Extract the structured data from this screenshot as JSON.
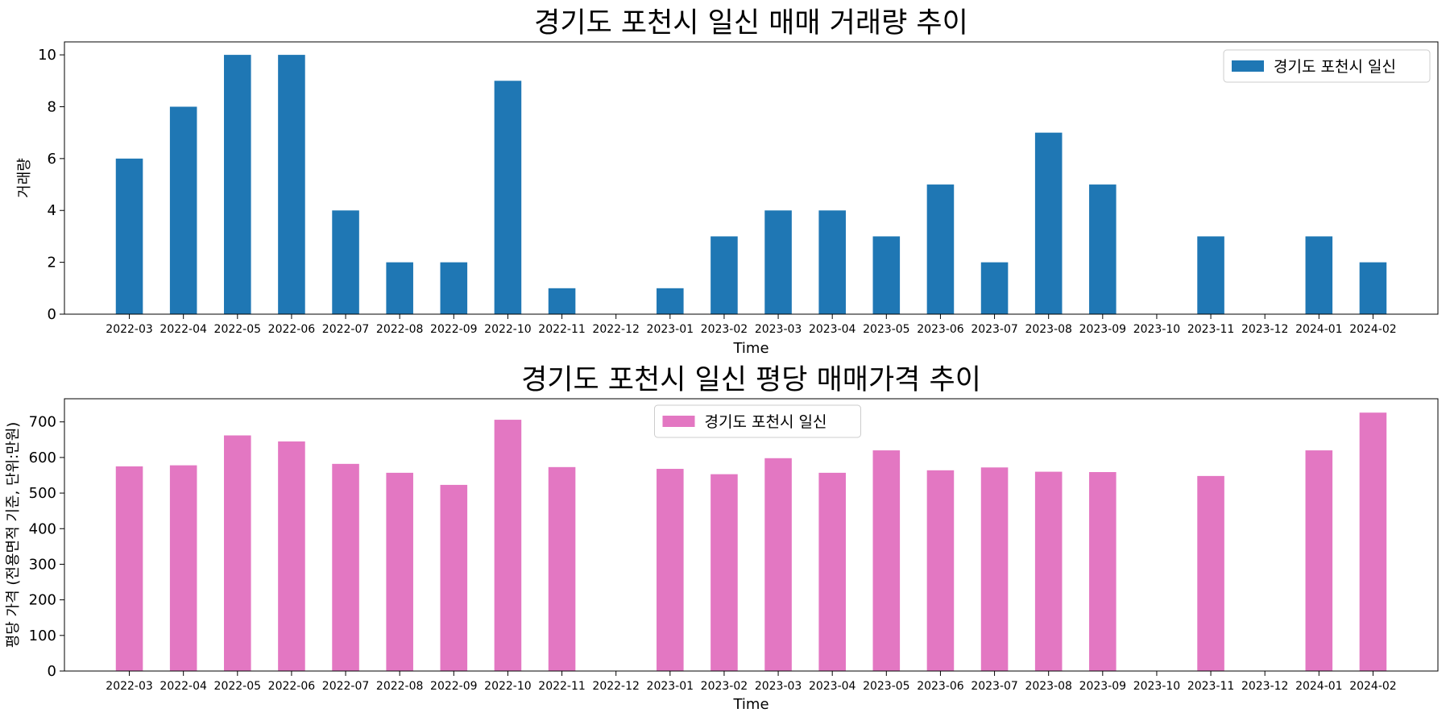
{
  "chart_data": [
    {
      "type": "bar",
      "title": "경기도 포천시 일신 매매 거래량 추이",
      "xlabel": "Time",
      "ylabel": "거래량",
      "ylim": [
        0,
        10.5
      ],
      "yticks": [
        0,
        2,
        4,
        6,
        8,
        10
      ],
      "legend": "top-right",
      "grid": false,
      "categories": [
        "2022-03",
        "2022-04",
        "2022-05",
        "2022-06",
        "2022-07",
        "2022-08",
        "2022-09",
        "2022-10",
        "2022-11",
        "2022-12",
        "2023-01",
        "2023-02",
        "2023-03",
        "2023-04",
        "2023-05",
        "2023-06",
        "2023-07",
        "2023-08",
        "2023-09",
        "2023-10",
        "2023-11",
        "2023-12",
        "2024-01",
        "2024-02"
      ],
      "series": [
        {
          "name": "경기도 포천시 일신",
          "color": "#1f77b4",
          "values": [
            6,
            8,
            10,
            10,
            4,
            2,
            2,
            9,
            1,
            0,
            1,
            3,
            4,
            4,
            3,
            5,
            2,
            7,
            5,
            0,
            3,
            0,
            3,
            2
          ]
        }
      ]
    },
    {
      "type": "bar",
      "title": "경기도 포천시 일신 평당 매매가격 추이",
      "xlabel": "Time",
      "ylabel": "평당 가격 (전용면적 기준, 단위:만원)",
      "ylim": [
        0,
        765
      ],
      "yticks": [
        0,
        100,
        200,
        300,
        400,
        500,
        600,
        700
      ],
      "legend": "top-center",
      "grid": false,
      "categories": [
        "2022-03",
        "2022-04",
        "2022-05",
        "2022-06",
        "2022-07",
        "2022-08",
        "2022-09",
        "2022-10",
        "2022-11",
        "2022-12",
        "2023-01",
        "2023-02",
        "2023-03",
        "2023-04",
        "2023-05",
        "2023-06",
        "2023-07",
        "2023-08",
        "2023-09",
        "2023-10",
        "2023-11",
        "2023-12",
        "2024-01",
        "2024-02"
      ],
      "series": [
        {
          "name": "경기도 포천시 일신",
          "color": "#e377c2",
          "values": [
            575,
            578,
            662,
            645,
            582,
            557,
            523,
            706,
            573,
            null,
            568,
            553,
            598,
            557,
            620,
            564,
            572,
            560,
            559,
            null,
            548,
            null,
            620,
            726
          ]
        }
      ]
    }
  ]
}
